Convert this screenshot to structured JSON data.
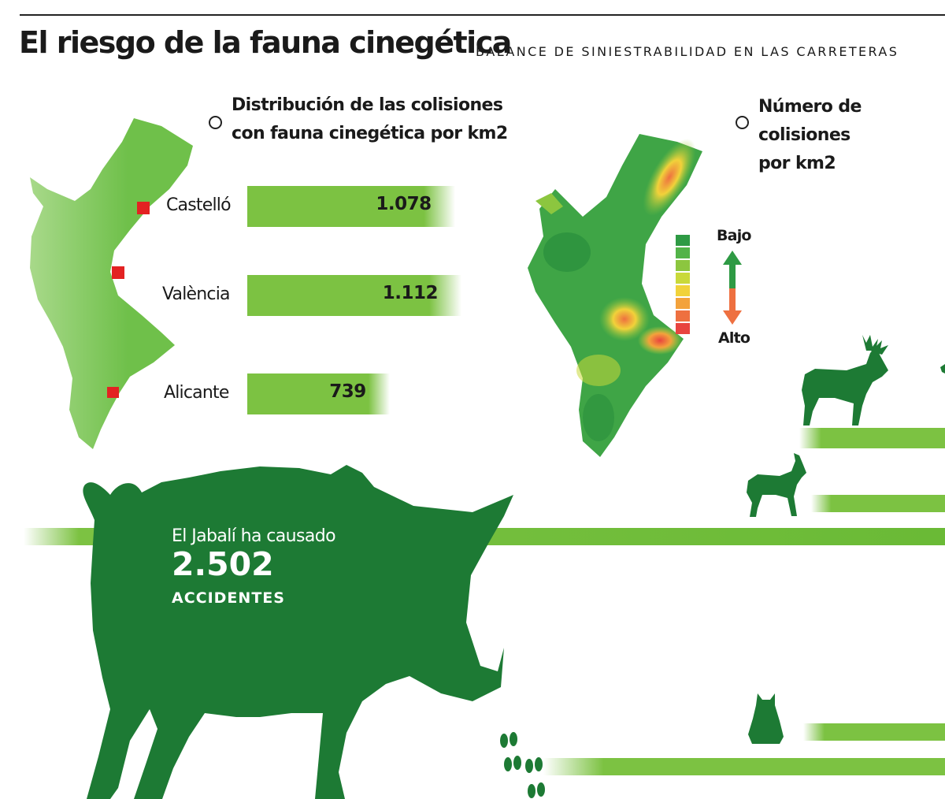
{
  "header": {
    "title": "El riesgo de la fauna cinegética",
    "subtitle": "BALANCE DE SINIESTRABILIDAD EN LAS CARRETERAS"
  },
  "section_left": {
    "heading_line1": "Distribución de las colisiones",
    "heading_line2": "con fauna cinegética por km2"
  },
  "section_right": {
    "heading_line1": "Número de",
    "heading_line2": "colisiones",
    "heading_line3": "por km2"
  },
  "heat_legend": {
    "low": "Bajo",
    "high": "Alto",
    "colors": [
      "#2e9a44",
      "#52b348",
      "#8cc63f",
      "#c9d93a",
      "#f1d23a",
      "#f3a23b",
      "#ee7040",
      "#e8443f"
    ]
  },
  "chart_data": {
    "type": "bar",
    "orientation": "horizontal",
    "title": "Distribución de las colisiones con fauna cinegética por km2",
    "categories": [
      "Castelló",
      "València",
      "Alicante"
    ],
    "values": [
      1078,
      1112,
      739
    ],
    "value_labels": [
      "1.078",
      "1.112",
      "739"
    ],
    "xlim": [
      0,
      1300
    ],
    "grid": false
  },
  "boar": {
    "line1": "El Jabalí ha causado",
    "value": "2.502",
    "line2": "ACCIDENTES"
  },
  "colors": {
    "bar_green": "#7cc242",
    "dark_green": "#1d7a34",
    "map_green": "#6fc04a",
    "city_marker": "#e32222"
  },
  "icons": [
    "region-map-icon",
    "heatmap-icon",
    "boar-silhouette-icon",
    "reindeer-silhouette-icon",
    "deer-silhouette-icon",
    "cat-silhouette-icon",
    "hoofprint-icon"
  ]
}
